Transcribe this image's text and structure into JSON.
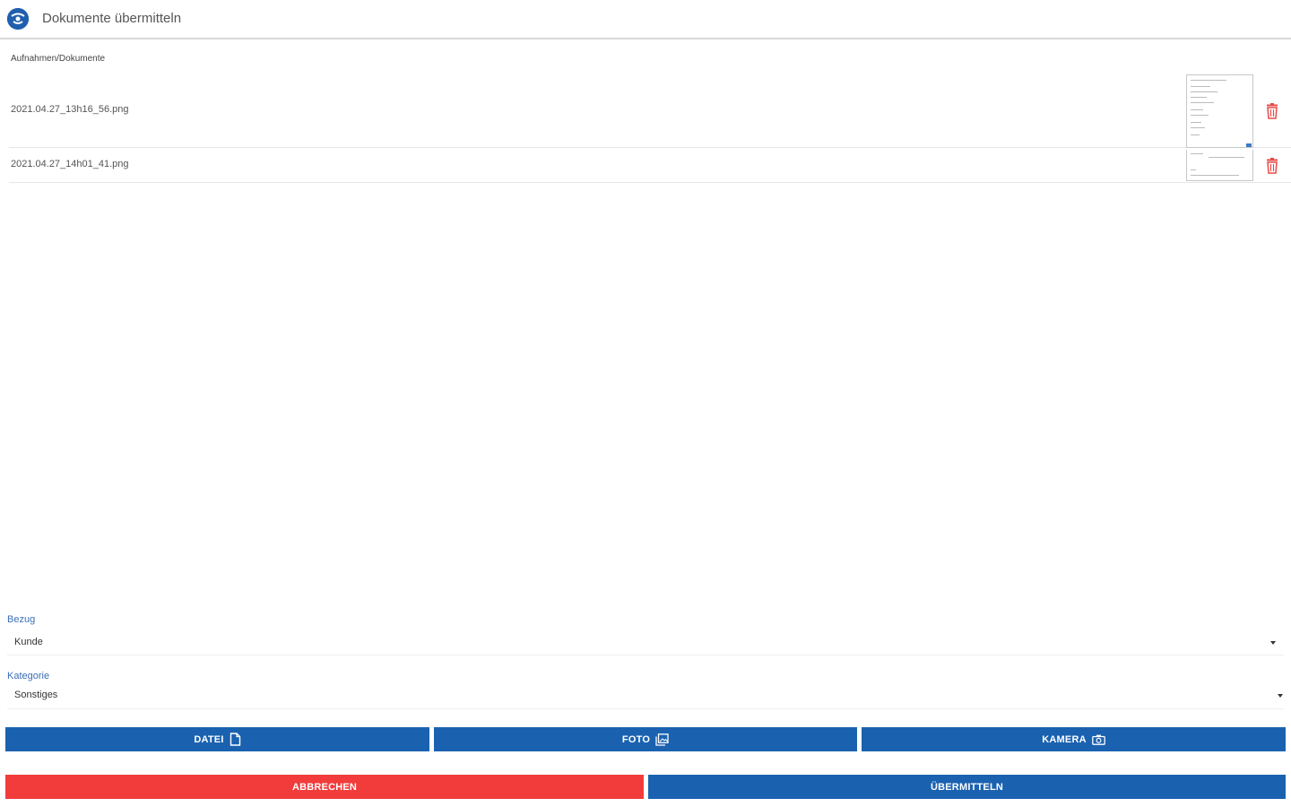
{
  "header": {
    "title": "Dokumente übermitteln"
  },
  "files": {
    "section_label": "Aufnahmen/Dokumente",
    "items": [
      {
        "name": "2021.04.27_13h16_56.png"
      },
      {
        "name": "2021.04.27_14h01_41.png"
      }
    ]
  },
  "bezug": {
    "label": "Bezug",
    "value": "Kunde"
  },
  "kategorie": {
    "label": "Kategorie",
    "value": "Sonstiges"
  },
  "actions": {
    "datei_label": "DATEI",
    "foto_label": "FOTO",
    "kamera_label": "KAMERA",
    "abbrechen_label": "ABBRECHEN",
    "uebermitteln_label": "ÜBERMITTELN"
  },
  "colors": {
    "primary": "#1a62b0",
    "danger": "#f23c3c",
    "label_blue": "#3a6fb7"
  }
}
